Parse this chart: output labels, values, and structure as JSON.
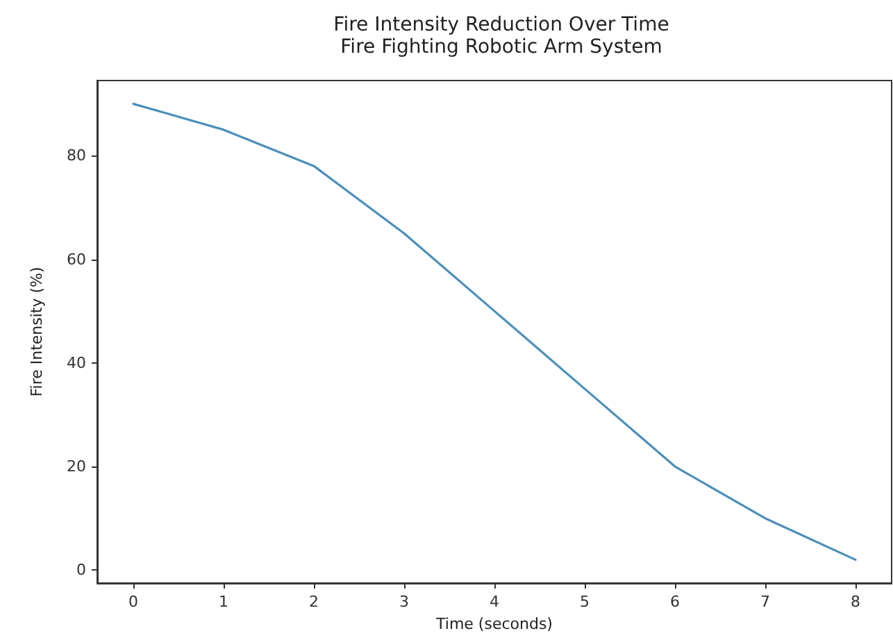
{
  "chart_data": {
    "type": "line",
    "title": "Fire Intensity Reduction Over Time",
    "subtitle": "Fire Fighting Robotic Arm System",
    "xlabel": "Time (seconds)",
    "ylabel": "Fire Intensity (%)",
    "x": [
      0,
      1,
      2,
      3,
      4,
      5,
      6,
      7,
      8
    ],
    "series": [
      {
        "color": "#4a8fbb",
        "values": [
          90,
          85,
          78,
          65,
          50,
          35,
          20,
          10,
          2
        ]
      }
    ],
    "xlim": [
      -0.4,
      8.4
    ],
    "xticks": [
      0,
      1,
      2,
      3,
      4,
      5,
      6,
      7,
      8
    ],
    "ylim": [
      -2.5,
      94.5
    ],
    "yticks": [
      0,
      20,
      40,
      60,
      80
    ],
    "grid": false,
    "marker": "none",
    "line_style": "solid"
  }
}
